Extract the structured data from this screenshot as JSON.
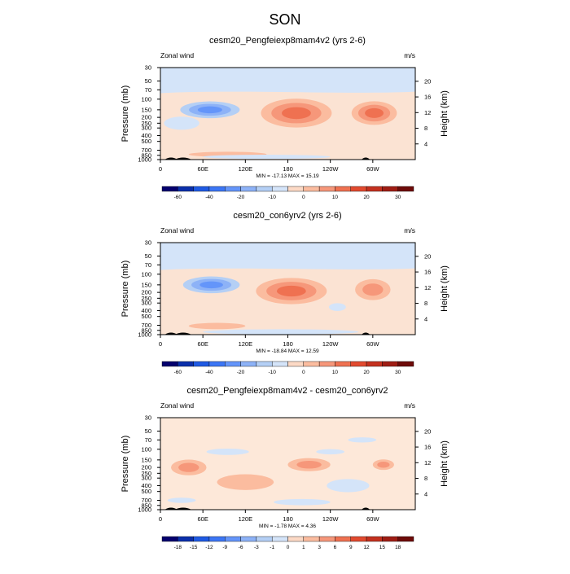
{
  "figure": {
    "title": "SON"
  },
  "colors": {
    "ticks": "#000000",
    "frame": "#000000"
  },
  "chart_data": [
    {
      "type": "heatmap",
      "title": "cesm20_Pengfeiexp8mam4v2 (yrs 2-6)",
      "left_string": "Zonal wind",
      "right_string": "m/s",
      "ylabel": "Pressure (mb)",
      "ylabel_right": "Height (km)",
      "xticks": [
        "0",
        "60E",
        "120E",
        "180",
        "120W",
        "60W"
      ],
      "yticks": [
        "30",
        "50",
        "70",
        "100",
        "150",
        "200",
        "250",
        "300",
        "400",
        "500",
        "700",
        "850",
        "1000"
      ],
      "yticks_right": [
        "20",
        "16",
        "12",
        "8",
        "4"
      ],
      "stats": "MIN = -17.13  MAX = 15.19",
      "min": -17.13,
      "max": 15.19,
      "colorbar": {
        "labels": [
          "-60",
          "-40",
          "-20",
          "-10",
          "0",
          "10",
          "20",
          "30"
        ],
        "colors": [
          "#05006e",
          "#0b2fab",
          "#1f5ae3",
          "#3c76f5",
          "#6495fa",
          "#8db2f7",
          "#b4cff5",
          "#d4e4f9",
          "#fcd9c5",
          "#fbbc9f",
          "#f6977a",
          "#ef7151",
          "#e24a2f",
          "#c4311f",
          "#9f1d14",
          "#6e0b09"
        ]
      },
      "background_color": "#fbe3d3",
      "features": [
        {
          "kind": "band",
          "label": "upper easterly band",
          "color": "#d4e4f9",
          "p_top": 30,
          "p_bottom": 75
        },
        {
          "kind": "blob",
          "label": "easterly core",
          "lon": 70,
          "p": 150,
          "dlon": 42,
          "dp": 0.32,
          "levels": [
            "#b4cff5",
            "#8db2f7",
            "#6495fa"
          ]
        },
        {
          "kind": "blob",
          "label": "weak easterly",
          "lon": 30,
          "p": 250,
          "dlon": 25,
          "dp": 0.25,
          "levels": [
            "#d4e4f9"
          ]
        },
        {
          "kind": "blob",
          "label": "westerly jet 1",
          "lon": 192,
          "p": 170,
          "dlon": 50,
          "dp": 0.55,
          "levels": [
            "#fbbc9f",
            "#f6977a",
            "#ef7151"
          ]
        },
        {
          "kind": "blob",
          "label": "westerly jet 2",
          "lon": 302,
          "p": 170,
          "dlon": 32,
          "dp": 0.45,
          "levels": [
            "#fbbc9f",
            "#f6977a",
            "#ef7151"
          ]
        },
        {
          "kind": "blob",
          "label": "low-level westerly",
          "lon": 95,
          "p": 820,
          "dlon": 55,
          "dp": 0.1,
          "levels": [
            "#fbbc9f"
          ]
        },
        {
          "kind": "blob",
          "label": "low-level easterly",
          "lon": 150,
          "p": 900,
          "dlon": 90,
          "dp": 0.08,
          "levels": [
            "#d4e4f9"
          ]
        }
      ],
      "terrain": [
        {
          "lon": 15,
          "width": 18
        },
        {
          "lon": 32,
          "width": 24
        },
        {
          "lon": 290,
          "width": 12
        }
      ]
    },
    {
      "type": "heatmap",
      "title": "cesm20_con6yrv2 (yrs 2-6)",
      "left_string": "Zonal wind",
      "right_string": "m/s",
      "ylabel": "Pressure (mb)",
      "ylabel_right": "Height (km)",
      "xticks": [
        "0",
        "60E",
        "120E",
        "180",
        "120W",
        "60W"
      ],
      "yticks": [
        "30",
        "50",
        "70",
        "100",
        "150",
        "200",
        "250",
        "300",
        "400",
        "500",
        "700",
        "850",
        "1000"
      ],
      "yticks_right": [
        "20",
        "16",
        "12",
        "8",
        "4"
      ],
      "stats": "MIN = -18.84  MAX =  12.59",
      "min": -18.84,
      "max": 12.59,
      "colorbar": {
        "labels": [
          "-60",
          "-40",
          "-20",
          "-10",
          "0",
          "10",
          "20",
          "30"
        ],
        "colors": [
          "#05006e",
          "#0b2fab",
          "#1f5ae3",
          "#3c76f5",
          "#6495fa",
          "#8db2f7",
          "#b4cff5",
          "#d4e4f9",
          "#fcd9c5",
          "#fbbc9f",
          "#f6977a",
          "#ef7151",
          "#e24a2f",
          "#c4311f",
          "#9f1d14",
          "#6e0b09"
        ]
      },
      "background_color": "#fbe3d3",
      "features": [
        {
          "kind": "band",
          "label": "upper easterly band",
          "color": "#d4e4f9",
          "p_top": 30,
          "p_bottom": 80
        },
        {
          "kind": "blob",
          "label": "easterly core",
          "lon": 72,
          "p": 150,
          "dlon": 40,
          "dp": 0.32,
          "levels": [
            "#b4cff5",
            "#8db2f7",
            "#6495fa"
          ]
        },
        {
          "kind": "blob",
          "label": "westerly jet 1",
          "lon": 185,
          "p": 190,
          "dlon": 50,
          "dp": 0.5,
          "levels": [
            "#fbbc9f",
            "#f6977a",
            "#ef7151"
          ]
        },
        {
          "kind": "blob",
          "label": "westerly jet 2",
          "lon": 300,
          "p": 180,
          "dlon": 25,
          "dp": 0.4,
          "levels": [
            "#fbbc9f",
            "#f6977a"
          ]
        },
        {
          "kind": "blob",
          "label": "low-level westerly",
          "lon": 80,
          "p": 720,
          "dlon": 40,
          "dp": 0.12,
          "levels": [
            "#fbbc9f"
          ]
        },
        {
          "kind": "blob",
          "label": "low-level easterly",
          "lon": 170,
          "p": 900,
          "dlon": 110,
          "dp": 0.1,
          "levels": [
            "#d4e4f9"
          ]
        },
        {
          "kind": "blob",
          "label": "weak easterly",
          "lon": 250,
          "p": 350,
          "dlon": 12,
          "dp": 0.15,
          "levels": [
            "#d4e4f9"
          ]
        }
      ],
      "terrain": [
        {
          "lon": 15,
          "width": 18
        },
        {
          "lon": 32,
          "width": 24
        },
        {
          "lon": 290,
          "width": 12
        }
      ]
    },
    {
      "type": "heatmap",
      "title": "cesm20_Pengfeiexp8mam4v2 - cesm20_con6yrv2",
      "left_string": "Zonal wind",
      "right_string": "m/s",
      "ylabel": "Pressure (mb)",
      "ylabel_right": "Height (km)",
      "xticks": [
        "0",
        "60E",
        "120E",
        "180",
        "120W",
        "60W"
      ],
      "yticks": [
        "30",
        "50",
        "70",
        "100",
        "150",
        "200",
        "250",
        "300",
        "400",
        "500",
        "700",
        "850",
        "1000"
      ],
      "yticks_right": [
        "20",
        "16",
        "12",
        "8",
        "4"
      ],
      "stats": "MIN = -1.78  MAX =  4.36",
      "min": -1.78,
      "max": 4.36,
      "colorbar": {
        "labels": [
          "-18",
          "-15",
          "-12",
          "-9",
          "-6",
          "-3",
          "-1",
          "0",
          "1",
          "3",
          "6",
          "9",
          "12",
          "15",
          "18"
        ],
        "colors": [
          "#05006e",
          "#0b2fab",
          "#1f5ae3",
          "#3c76f5",
          "#6495fa",
          "#8db2f7",
          "#b4cff5",
          "#d4e4f9",
          "#fcd9c5",
          "#fbbc9f",
          "#f6977a",
          "#ef7151",
          "#e24a2f",
          "#c4311f",
          "#9f1d14",
          "#6e0b09"
        ]
      },
      "background_color": "#fde8d9",
      "features": [
        {
          "kind": "blob",
          "label": "positive anomaly 1",
          "lon": 40,
          "p": 200,
          "dlon": 25,
          "dp": 0.3,
          "levels": [
            "#fbbc9f",
            "#f6977a"
          ]
        },
        {
          "kind": "blob",
          "label": "positive anomaly 2",
          "lon": 210,
          "p": 180,
          "dlon": 30,
          "dp": 0.25,
          "levels": [
            "#fbbc9f",
            "#f6977a"
          ]
        },
        {
          "kind": "blob",
          "label": "positive anomaly 3",
          "lon": 315,
          "p": 180,
          "dlon": 15,
          "dp": 0.2,
          "levels": [
            "#fbbc9f",
            "#f6977a"
          ]
        },
        {
          "kind": "blob",
          "label": "positive anomaly 4",
          "lon": 120,
          "p": 350,
          "dlon": 40,
          "dp": 0.3,
          "levels": [
            "#fbbc9f"
          ]
        },
        {
          "kind": "blob",
          "label": "negative anomaly 1",
          "lon": 95,
          "p": 110,
          "dlon": 30,
          "dp": 0.12,
          "levels": [
            "#d4e4f9"
          ]
        },
        {
          "kind": "blob",
          "label": "negative anomaly 2",
          "lon": 240,
          "p": 110,
          "dlon": 20,
          "dp": 0.1,
          "levels": [
            "#d4e4f9"
          ]
        },
        {
          "kind": "blob",
          "label": "negative anomaly 3",
          "lon": 265,
          "p": 400,
          "dlon": 30,
          "dp": 0.25,
          "levels": [
            "#d4e4f9"
          ]
        },
        {
          "kind": "blob",
          "label": "negative anomaly 4",
          "lon": 30,
          "p": 700,
          "dlon": 20,
          "dp": 0.1,
          "levels": [
            "#d4e4f9"
          ]
        },
        {
          "kind": "blob",
          "label": "negative anomaly 5",
          "lon": 200,
          "p": 750,
          "dlon": 40,
          "dp": 0.12,
          "levels": [
            "#d4e4f9"
          ]
        },
        {
          "kind": "blob",
          "label": "negative anomaly 6",
          "lon": 285,
          "p": 70,
          "dlon": 20,
          "dp": 0.1,
          "levels": [
            "#d4e4f9"
          ]
        }
      ],
      "terrain": [
        {
          "lon": 15,
          "width": 18
        },
        {
          "lon": 32,
          "width": 24
        },
        {
          "lon": 290,
          "width": 12
        }
      ]
    }
  ]
}
